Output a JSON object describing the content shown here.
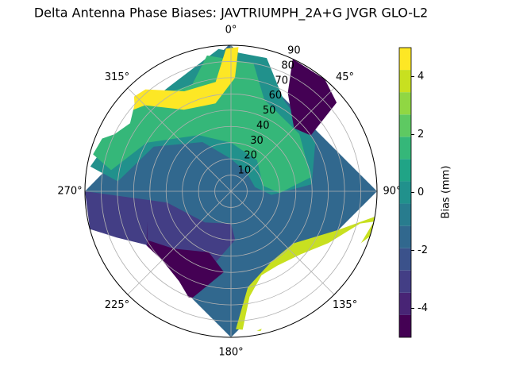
{
  "chart_data": {
    "type": "polar_contour",
    "title": "Delta Antenna Phase Biases: JAVTRIUMPH_2A+G JVGR GLO-L2",
    "colorbar_label": "Bias (mm)",
    "clim": [
      -5,
      5
    ],
    "cticks": [
      -4,
      -2,
      0,
      2,
      4
    ],
    "levels": [
      -5,
      -4.231,
      -3.462,
      -2.692,
      -1.923,
      -1.154,
      -0.385,
      0.385,
      1.154,
      1.923,
      2.692,
      3.462,
      4.231,
      5
    ],
    "colors": [
      "#440154",
      "#482475",
      "#433e85",
      "#3b528b",
      "#31688e",
      "#287c8e",
      "#21918c",
      "#20a486",
      "#35b779",
      "#5ec962",
      "#90d743",
      "#c8e020",
      "#fde725"
    ],
    "rlim": [
      0,
      90
    ],
    "rticks": [
      10,
      20,
      30,
      40,
      50,
      60,
      70,
      80,
      90
    ],
    "thetaticks": [
      {
        "value": 0,
        "label": "0°"
      },
      {
        "value": 45,
        "label": "45°"
      },
      {
        "value": 90,
        "label": "90°"
      },
      {
        "value": 135,
        "label": "135°"
      },
      {
        "value": 180,
        "label": "180°"
      },
      {
        "value": 225,
        "label": "225°"
      },
      {
        "value": 270,
        "label": "270°"
      },
      {
        "value": 315,
        "label": "315°"
      }
    ],
    "regions": [
      {
        "value": -1.5,
        "az": [
          0,
          90,
          180,
          270,
          359
        ],
        "r": [
          90,
          90,
          90,
          90,
          90
        ]
      },
      {
        "value": 0,
        "az": [
          275,
          300,
          330,
          0,
          40,
          80,
          95,
          85,
          60,
          30,
          15,
          355,
          330,
          300,
          280
        ],
        "r": [
          70,
          55,
          35,
          20,
          15,
          15,
          25,
          50,
          60,
          65,
          85,
          88,
          75,
          80,
          88
        ]
      },
      {
        "value": 1.5,
        "az": [
          280,
          300,
          330,
          0,
          40,
          80,
          92,
          80,
          50,
          20,
          10,
          350,
          340,
          320,
          300,
          285
        ],
        "r": [
          75,
          60,
          40,
          30,
          25,
          20,
          30,
          50,
          55,
          60,
          80,
          85,
          70,
          75,
          85,
          88
        ]
      },
      {
        "value": 4.6,
        "az": [
          3,
          2,
          350,
          330,
          315,
          300,
          305,
          320,
          335,
          352,
          358
        ],
        "r": [
          89,
          70,
          55,
          58,
          75,
          88,
          88,
          82,
          68,
          68,
          88
        ]
      },
      {
        "value": -4.6,
        "az": [
          25,
          30,
          45,
          55,
          50,
          40
        ],
        "r": [
          90,
          70,
          55,
          60,
          85,
          90
        ]
      },
      {
        "value": -3,
        "az": [
          180,
          220,
          260,
          270,
          255,
          230,
          200,
          175
        ],
        "r": [
          20,
          25,
          40,
          90,
          90,
          70,
          60,
          30
        ]
      },
      {
        "value": -4.6,
        "az": [
          200,
          225,
          240,
          250,
          220,
          200,
          185
        ],
        "r": [
          40,
          50,
          60,
          55,
          80,
          70,
          50
        ]
      },
      {
        "value": 3.8,
        "az": [
          100,
          110,
          130,
          150,
          170,
          178,
          168,
          150,
          135,
          120,
          108
        ],
        "r": [
          90,
          70,
          50,
          50,
          60,
          85,
          88,
          65,
          65,
          80,
          90
        ]
      },
      {
        "value": null,
        "az": [
          255,
          248,
          238,
          225,
          210,
          195,
          188,
          200,
          230
        ],
        "r": [
          90,
          76,
          62,
          60,
          64,
          78,
          90,
          90,
          90
        ]
      },
      {
        "value": null,
        "az": [
          176,
          170,
          160,
          148,
          132,
          118,
          104,
          102,
          140
        ],
        "r": [
          90,
          66,
          55,
          54,
          58,
          68,
          82,
          90,
          90
        ]
      },
      {
        "value": null,
        "az": [
          290,
          296,
          304,
          312,
          318,
          305
        ],
        "r": [
          90,
          80,
          75,
          80,
          90,
          90
        ]
      }
    ]
  }
}
